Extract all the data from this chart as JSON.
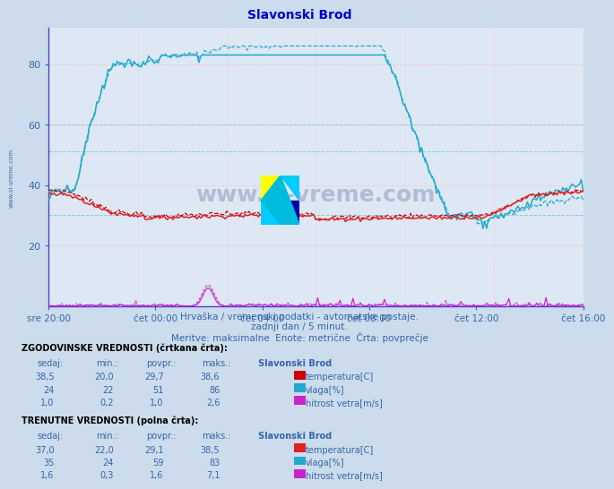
{
  "title": "Slavonski Brod",
  "title_color": "#0000cc",
  "bg_color": "#ccdcec",
  "plot_bg_color": "#dde8f4",
  "grid_color_red": "#ffbbbb",
  "grid_color_cyan": "#88ccdd",
  "text_color": "#3366aa",
  "border_color": "#4444cc",
  "ylim": [
    0,
    92
  ],
  "yticks": [
    20,
    40,
    60,
    80
  ],
  "x_labels": [
    "sre 20:00",
    "čet 00:00",
    "čet 04:00",
    "čet 08:00",
    "čet 12:00",
    "čet 16:00"
  ],
  "subtitle1": "Hrvaška / vremenski podatki - avtomatske postaje.",
  "subtitle2": "zadnji dan / 5 minut.",
  "subtitle3": "Meritve: maksimalne  Enote: metrične  Črta: povprečje",
  "watermark": "www.si-vreme.com",
  "temp_color_hist": "#cc0000",
  "temp_color_curr": "#dd2222",
  "vlaga_color_hist": "#22aacc",
  "vlaga_color_curr": "#22aacc",
  "wind_color_hist": "#cc22cc",
  "wind_color_curr": "#cc22cc",
  "side_text_color": "#4466aa"
}
